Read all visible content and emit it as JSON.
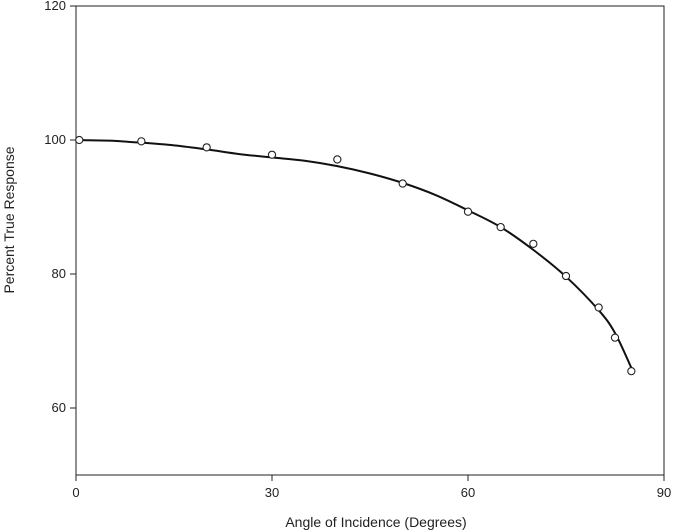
{
  "chart_data": {
    "type": "scatter",
    "title": "",
    "xlabel": "Angle of Incidence (Degrees)",
    "ylabel": "Percent True Response",
    "xlim": [
      0,
      90
    ],
    "ylim": [
      50,
      120
    ],
    "xticks": [
      0,
      30,
      60,
      90
    ],
    "yticks": [
      60,
      80,
      100,
      120
    ],
    "grid": false,
    "legend": "none",
    "colors": {
      "line": "#111111",
      "marker_stroke": "#222222",
      "marker_fill": "#ffffff",
      "axis": "#222222"
    },
    "series": [
      {
        "kind": "points",
        "x": [
          0.5,
          10,
          20,
          30,
          40,
          50,
          60,
          65,
          70,
          75,
          80,
          82.5,
          85
        ],
        "y": [
          100,
          99.8,
          98.9,
          97.8,
          97.1,
          93.5,
          89.3,
          87.0,
          84.5,
          79.7,
          75.0,
          70.5,
          65.5
        ]
      },
      {
        "kind": "fit-curve",
        "x": [
          0,
          5,
          10,
          15,
          20,
          25,
          30,
          35,
          40,
          45,
          50,
          55,
          60,
          65,
          70,
          75,
          80,
          82.5,
          85
        ],
        "y": [
          100,
          99.9,
          99.6,
          99.2,
          98.6,
          97.9,
          97.4,
          96.9,
          96.1,
          95.0,
          93.6,
          91.8,
          89.5,
          87.0,
          83.6,
          79.6,
          74.6,
          71.2,
          66.0
        ]
      }
    ]
  }
}
